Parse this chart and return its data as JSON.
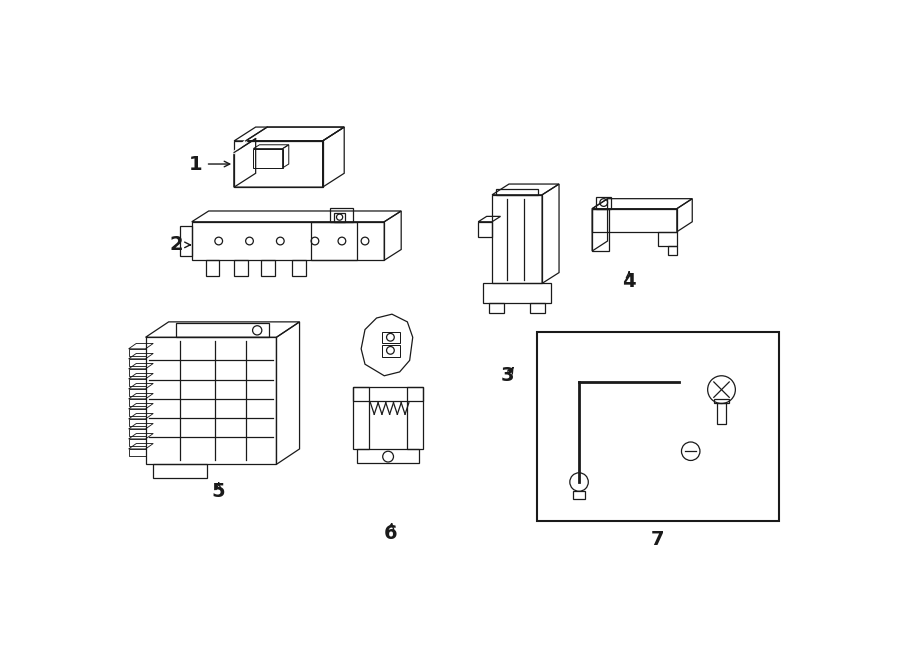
{
  "bg_color": "#ffffff",
  "line_color": "#1a1a1a",
  "lw": 0.9,
  "fig_w": 9.0,
  "fig_h": 6.61,
  "font_size": 14
}
